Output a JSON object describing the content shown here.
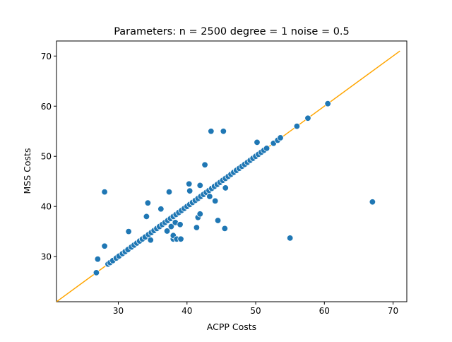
{
  "chart_data": {
    "type": "scatter",
    "title": "Parameters: n = 2500 degree = 1 noise = 0.5",
    "xlabel": "ACPP Costs",
    "ylabel": "MSS Costs",
    "xlim": [
      21,
      72
    ],
    "ylim": [
      21,
      73
    ],
    "xticks": [
      "30",
      "40",
      "50",
      "60",
      "70"
    ],
    "yticks": [
      "30",
      "40",
      "50",
      "60",
      "70"
    ],
    "grid": false,
    "marker_color": "#1f77b4",
    "marker_edge_color": "#ffffff",
    "reference_line": {
      "x": [
        21,
        71
      ],
      "y": [
        21,
        71
      ],
      "color": "#ffa500"
    },
    "points": [
      [
        26.8,
        26.8
      ],
      [
        27.0,
        29.5
      ],
      [
        28.0,
        32.1
      ],
      [
        28.0,
        42.9
      ],
      [
        28.5,
        28.5
      ],
      [
        28.8,
        28.8
      ],
      [
        29.2,
        29.2
      ],
      [
        29.7,
        29.7
      ],
      [
        30.1,
        30.1
      ],
      [
        30.6,
        30.6
      ],
      [
        31.0,
        31.0
      ],
      [
        31.4,
        31.4
      ],
      [
        31.5,
        35.0
      ],
      [
        31.9,
        31.9
      ],
      [
        32.3,
        32.3
      ],
      [
        32.7,
        32.7
      ],
      [
        33.1,
        33.1
      ],
      [
        33.5,
        33.5
      ],
      [
        33.9,
        33.9
      ],
      [
        34.1,
        38.0
      ],
      [
        34.3,
        40.7
      ],
      [
        34.4,
        34.4
      ],
      [
        34.7,
        33.3
      ],
      [
        34.8,
        34.8
      ],
      [
        35.2,
        35.2
      ],
      [
        35.6,
        35.6
      ],
      [
        36.0,
        36.0
      ],
      [
        36.2,
        39.5
      ],
      [
        36.4,
        36.4
      ],
      [
        36.8,
        36.8
      ],
      [
        37.1,
        35.1
      ],
      [
        37.2,
        37.2
      ],
      [
        37.4,
        42.9
      ],
      [
        37.6,
        37.6
      ],
      [
        37.7,
        36.0
      ],
      [
        38.0,
        33.5
      ],
      [
        38.0,
        38.0
      ],
      [
        38.0,
        34.2
      ],
      [
        38.3,
        36.8
      ],
      [
        38.4,
        38.4
      ],
      [
        38.5,
        33.5
      ],
      [
        38.8,
        38.8
      ],
      [
        39.0,
        36.4
      ],
      [
        39.1,
        33.5
      ],
      [
        39.2,
        39.2
      ],
      [
        39.6,
        39.6
      ],
      [
        40.0,
        40.0
      ],
      [
        40.3,
        44.5
      ],
      [
        40.4,
        40.4
      ],
      [
        40.4,
        43.1
      ],
      [
        40.8,
        40.8
      ],
      [
        41.2,
        41.2
      ],
      [
        41.4,
        35.8
      ],
      [
        41.6,
        37.8
      ],
      [
        41.6,
        41.6
      ],
      [
        41.9,
        38.5
      ],
      [
        41.9,
        44.2
      ],
      [
        42.0,
        42.0
      ],
      [
        42.4,
        42.4
      ],
      [
        42.6,
        48.3
      ],
      [
        42.8,
        42.8
      ],
      [
        43.2,
        43.2
      ],
      [
        43.3,
        42.0
      ],
      [
        43.5,
        55.0
      ],
      [
        43.6,
        43.6
      ],
      [
        44.0,
        44.0
      ],
      [
        44.1,
        41.1
      ],
      [
        44.4,
        44.4
      ],
      [
        44.5,
        37.2
      ],
      [
        44.8,
        44.8
      ],
      [
        45.2,
        45.2
      ],
      [
        45.3,
        55.0
      ],
      [
        45.5,
        35.6
      ],
      [
        45.6,
        45.6
      ],
      [
        45.6,
        43.7
      ],
      [
        46.0,
        46.0
      ],
      [
        46.4,
        46.4
      ],
      [
        46.8,
        46.8
      ],
      [
        47.2,
        47.2
      ],
      [
        47.6,
        47.6
      ],
      [
        48.0,
        48.0
      ],
      [
        48.4,
        48.4
      ],
      [
        48.8,
        48.8
      ],
      [
        49.2,
        49.2
      ],
      [
        49.6,
        49.6
      ],
      [
        50.0,
        50.0
      ],
      [
        50.2,
        52.8
      ],
      [
        50.4,
        50.4
      ],
      [
        50.8,
        50.8
      ],
      [
        51.2,
        51.2
      ],
      [
        51.6,
        51.6
      ],
      [
        52.6,
        52.6
      ],
      [
        53.2,
        53.2
      ],
      [
        53.6,
        53.7
      ],
      [
        55.0,
        33.7
      ],
      [
        56.0,
        56.0
      ],
      [
        57.6,
        57.6
      ],
      [
        60.5,
        60.5
      ],
      [
        67.0,
        40.9
      ]
    ]
  }
}
